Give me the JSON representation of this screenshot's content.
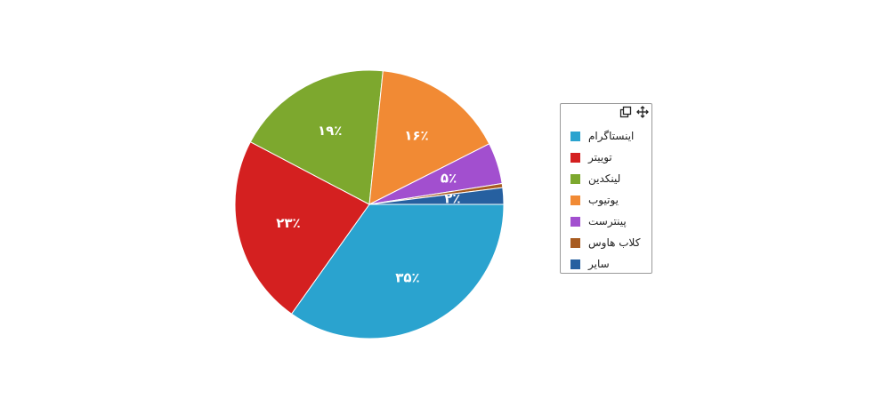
{
  "chart_data": {
    "type": "pie",
    "title": "",
    "categories": [
      "اینستاگرام",
      "توییتر",
      "لینکدین",
      "یوتیوب",
      "پینترست",
      "کلاب هاوس",
      "سایر"
    ],
    "values": [
      35,
      23,
      19,
      16,
      5,
      0.5,
      2
    ],
    "labels": [
      "۳۵٪",
      "۲۳٪",
      "۱۹٪",
      "۱۶٪",
      "۵٪",
      "",
      "۲٪"
    ],
    "colors": [
      "#2aa3cf",
      "#d42020",
      "#7da82e",
      "#f18a34",
      "#a24fcf",
      "#a85b20",
      "#2660a0"
    ],
    "legend": "right",
    "start": "3 o'clock",
    "direction": "clockwise"
  },
  "legend": {
    "tools": [
      {
        "icon": "copy-icon"
      },
      {
        "icon": "move-icon"
      }
    ]
  }
}
